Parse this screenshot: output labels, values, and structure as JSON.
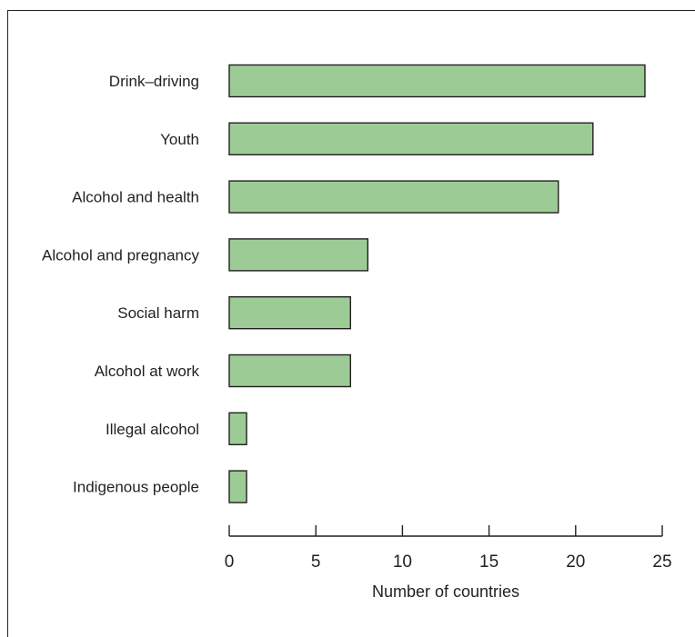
{
  "chart_data": {
    "type": "bar",
    "orientation": "horizontal",
    "categories": [
      "Drink–driving",
      "Youth",
      "Alcohol and health",
      "Alcohol and pregnancy",
      "Social harm",
      "Alcohol at work",
      "Illegal alcohol",
      "Indigenous people"
    ],
    "values": [
      24,
      21,
      19,
      8,
      7,
      7,
      1,
      1
    ],
    "xlabel": "Number of countries",
    "ylabel": "",
    "xlim": [
      0,
      25
    ],
    "xticks": [
      0,
      5,
      10,
      15,
      20,
      25
    ],
    "grid": false,
    "bar_color": "#9dcb96",
    "edge_color": "#231f20"
  }
}
